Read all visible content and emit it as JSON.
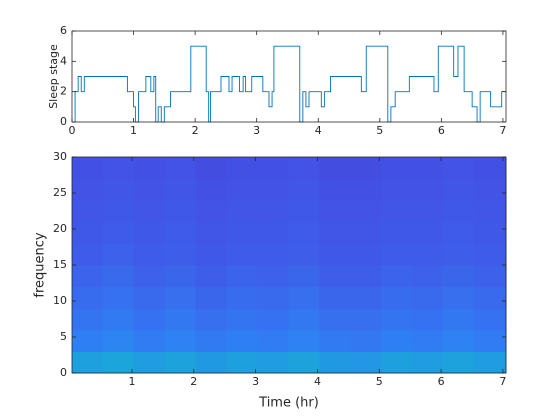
{
  "chart_data": [
    {
      "type": "stairs",
      "ylabel": "Sleep stage",
      "color": "#0072bd",
      "xlim": [
        0,
        7.05
      ],
      "xticks": [
        0,
        1,
        2,
        3,
        4,
        5,
        6,
        7
      ],
      "ylim": [
        0,
        6
      ],
      "yticks": [
        0,
        2,
        4,
        6
      ],
      "x": [
        0,
        0.05,
        0.1,
        0.15,
        0.2,
        0.9,
        1.0,
        1.03,
        1.08,
        1.2,
        1.28,
        1.33,
        1.36,
        1.4,
        1.45,
        1.5,
        1.6,
        1.93,
        2.18,
        2.22,
        2.25,
        2.42,
        2.55,
        2.6,
        2.72,
        2.78,
        2.82,
        2.92,
        3.1,
        3.2,
        3.25,
        3.28,
        3.7,
        3.75,
        3.8,
        3.85,
        4.05,
        4.1,
        4.2,
        4.7,
        4.78,
        5.13,
        5.18,
        5.25,
        5.48,
        5.88,
        5.95,
        6.2,
        6.27,
        6.37,
        6.5,
        6.58,
        6.63,
        6.8,
        6.98,
        7.05
      ],
      "values": [
        0,
        2,
        3,
        2,
        3,
        2,
        1,
        0,
        2,
        3,
        2,
        3,
        0,
        1,
        0,
        1,
        2,
        5,
        2,
        0,
        2,
        3,
        2,
        3,
        2,
        3,
        2,
        3,
        2,
        1,
        2,
        5,
        0,
        2,
        1,
        2,
        1,
        2,
        3,
        2,
        5,
        0,
        1,
        2,
        3,
        2,
        5,
        3,
        5,
        2,
        1,
        0,
        2,
        1,
        2,
        2
      ]
    },
    {
      "type": "heatmap",
      "xlabel": "Time (hr)",
      "ylabel": "frequency",
      "xlim": [
        0.03,
        7.05
      ],
      "xticks": [
        1,
        2,
        3,
        4,
        5,
        6,
        7
      ],
      "ylim": [
        0,
        30
      ],
      "yticks": [
        0,
        5,
        10,
        15,
        20,
        25,
        30
      ],
      "x_bins": [
        0.03,
        0.53,
        1.03,
        1.53,
        2.03,
        2.53,
        3.03,
        3.53,
        4.03,
        4.53,
        5.03,
        5.53,
        6.03,
        6.53,
        7.05
      ],
      "y_bins": [
        0,
        3,
        6,
        9,
        12,
        15,
        18,
        21,
        24,
        27,
        30
      ],
      "zlim": [
        0,
        1
      ],
      "colormap": [
        "#3e26a8",
        "#4352e6",
        "#2f80f4",
        "#15b1d2",
        "#3fc79a",
        "#bcbd3f",
        "#f9fb15"
      ],
      "z": [
        [
          0.44,
          0.46,
          0.43,
          0.45,
          0.42,
          0.44,
          0.43,
          0.45,
          0.42,
          0.41,
          0.44,
          0.43,
          0.45,
          0.43
        ],
        [
          0.33,
          0.35,
          0.32,
          0.34,
          0.31,
          0.33,
          0.32,
          0.34,
          0.31,
          0.3,
          0.33,
          0.32,
          0.34,
          0.32
        ],
        [
          0.29,
          0.31,
          0.28,
          0.3,
          0.27,
          0.29,
          0.28,
          0.3,
          0.27,
          0.27,
          0.29,
          0.28,
          0.3,
          0.28
        ],
        [
          0.26,
          0.28,
          0.25,
          0.27,
          0.24,
          0.26,
          0.25,
          0.27,
          0.24,
          0.24,
          0.26,
          0.25,
          0.27,
          0.25
        ],
        [
          0.23,
          0.25,
          0.22,
          0.24,
          0.21,
          0.23,
          0.22,
          0.24,
          0.21,
          0.21,
          0.23,
          0.22,
          0.24,
          0.22
        ],
        [
          0.2,
          0.22,
          0.2,
          0.21,
          0.19,
          0.2,
          0.2,
          0.21,
          0.19,
          0.19,
          0.2,
          0.2,
          0.21,
          0.2
        ],
        [
          0.19,
          0.2,
          0.19,
          0.2,
          0.18,
          0.19,
          0.19,
          0.2,
          0.18,
          0.18,
          0.19,
          0.19,
          0.2,
          0.19
        ],
        [
          0.18,
          0.19,
          0.18,
          0.19,
          0.17,
          0.18,
          0.18,
          0.19,
          0.17,
          0.17,
          0.18,
          0.18,
          0.19,
          0.18
        ],
        [
          0.17,
          0.18,
          0.17,
          0.18,
          0.16,
          0.17,
          0.17,
          0.18,
          0.16,
          0.16,
          0.17,
          0.17,
          0.18,
          0.17
        ],
        [
          0.16,
          0.17,
          0.16,
          0.17,
          0.15,
          0.16,
          0.16,
          0.17,
          0.15,
          0.15,
          0.16,
          0.16,
          0.17,
          0.16
        ]
      ]
    }
  ]
}
